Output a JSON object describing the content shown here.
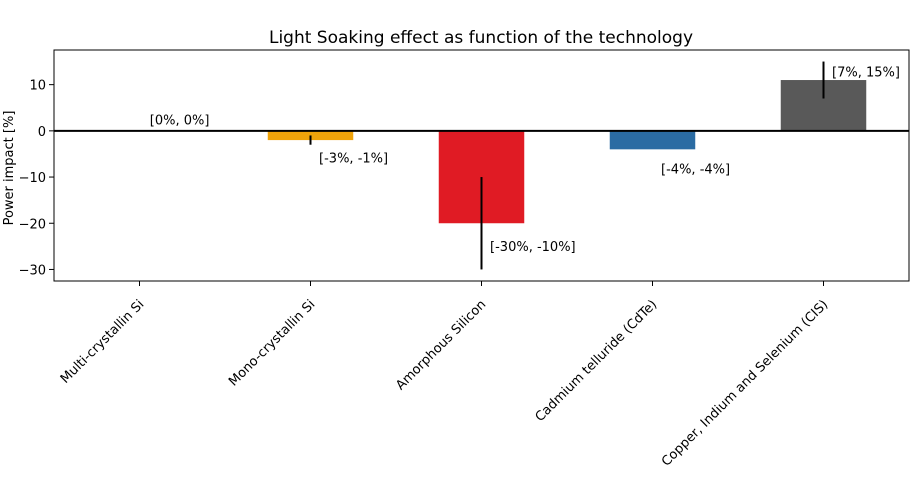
{
  "chart_data": {
    "type": "bar",
    "title": "Light Soaking effect as function of the technology",
    "xlabel": "",
    "ylabel": "Power impact [%]",
    "ylim": [
      -32.5,
      17.5
    ],
    "yticks": [
      -30,
      -20,
      -10,
      0,
      10
    ],
    "grid": false,
    "categories": [
      "Multi-crystallin Si",
      "Mono-crystallin Si",
      "Amorphous Silicon",
      "Cadmium telluride (CdTe)",
      "Copper, Indium and Selenium (CIS)"
    ],
    "values": [
      0,
      -2,
      -20,
      -4,
      11
    ],
    "error_ranges": [
      [
        0,
        0
      ],
      [
        -3,
        -1
      ],
      [
        -30,
        -10
      ],
      [
        -4,
        -4
      ],
      [
        7,
        15
      ]
    ],
    "annotations": [
      "[0%, 0%]",
      "[-3%, -1%]",
      "[-30%, -10%]",
      "[-4%, -4%]",
      "[7%, 15%]"
    ],
    "colors": [
      "#1f77b4",
      "#f0a30a",
      "#e01b24",
      "#2b6ca3",
      "#595959"
    ]
  }
}
